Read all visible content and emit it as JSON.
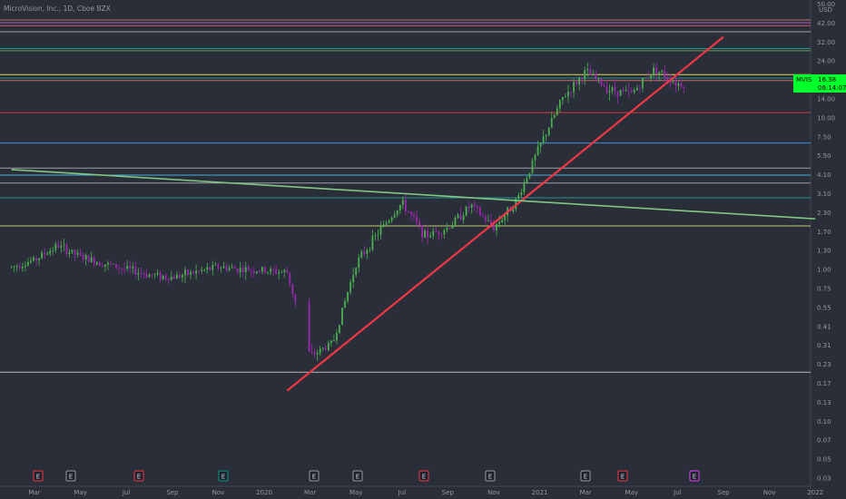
{
  "header": {
    "title": "MicroVision, Inc., 1D, Cboe BZX"
  },
  "price_axis": {
    "currency": "USD",
    "ticks": [
      "50.00",
      "42.00",
      "32.00",
      "24.00",
      "18.00",
      "14.00",
      "10.00",
      "7.50",
      "5.50",
      "4.10",
      "3.10",
      "2.30",
      "1.70",
      "1.30",
      "1.00",
      "0.75",
      "0.55",
      "0.41",
      "0.31",
      "0.23",
      "0.17",
      "0.13",
      "0.10",
      "0.07",
      "0.05",
      "0.03"
    ]
  },
  "time_axis": {
    "ticks": [
      "Mar",
      "May",
      "Jul",
      "Sep",
      "Nov",
      "2020",
      "Mar",
      "May",
      "Jul",
      "Sep",
      "Nov",
      "2021",
      "Mar",
      "May",
      "Jul",
      "Sep",
      "Nov",
      "2022"
    ]
  },
  "last_price": {
    "symbol": "MVIS",
    "value": "16.38",
    "countdown": "06:14:07",
    "color": "#00ff2a"
  },
  "earnings_markers": [
    {
      "label": "E",
      "color": "#f23645"
    },
    {
      "label": "E",
      "color": "#9598a1"
    },
    {
      "label": "E",
      "color": "#f23645"
    },
    {
      "label": "E",
      "color": "#089981"
    },
    {
      "label": "E",
      "color": "#9598a1"
    },
    {
      "label": "E",
      "color": "#9598a1"
    },
    {
      "label": "E",
      "color": "#f23645"
    },
    {
      "label": "E",
      "color": "#9598a1"
    },
    {
      "label": "E",
      "color": "#9598a1"
    },
    {
      "label": "E",
      "color": "#f23645"
    },
    {
      "label": "E",
      "color": "#e040fb"
    }
  ],
  "chart_data": {
    "type": "candlestick",
    "title": "MicroVision, Inc., 1D, Cboe BZX",
    "y_scale": "log",
    "ylim": [
      0.03,
      50
    ],
    "x_range": [
      "2019-02",
      "2022-01"
    ],
    "grid": false,
    "series": [
      {
        "date": "2019-02",
        "close": 0.85
      },
      {
        "date": "2019-03",
        "close": 0.95
      },
      {
        "date": "2019-04",
        "close": 1.2
      },
      {
        "date": "2019-05",
        "close": 1.0
      },
      {
        "date": "2019-06",
        "close": 0.9
      },
      {
        "date": "2019-07",
        "close": 0.82
      },
      {
        "date": "2019-08",
        "close": 0.75
      },
      {
        "date": "2019-09",
        "close": 0.72
      },
      {
        "date": "2019-10",
        "close": 0.78
      },
      {
        "date": "2019-11",
        "close": 0.85
      },
      {
        "date": "2019-12",
        "close": 0.82
      },
      {
        "date": "2020-01",
        "close": 0.8
      },
      {
        "date": "2020-02",
        "close": 0.78
      },
      {
        "date": "2020-03",
        "close": 0.2
      },
      {
        "date": "2020-04",
        "close": 0.25
      },
      {
        "date": "2020-05",
        "close": 0.9
      },
      {
        "date": "2020-06",
        "close": 1.5
      },
      {
        "date": "2020-07",
        "close": 2.4
      },
      {
        "date": "2020-08",
        "close": 1.4
      },
      {
        "date": "2020-09",
        "close": 1.6
      },
      {
        "date": "2020-10",
        "close": 2.3
      },
      {
        "date": "2020-11",
        "close": 1.6
      },
      {
        "date": "2020-12",
        "close": 2.5
      },
      {
        "date": "2021-01",
        "close": 6.0
      },
      {
        "date": "2021-02",
        "close": 13.0
      },
      {
        "date": "2021-03",
        "close": 20.0
      },
      {
        "date": "2021-04",
        "close": 15.0
      },
      {
        "date": "2021-05",
        "close": 14.0
      },
      {
        "date": "2021-06",
        "close": 21.0
      },
      {
        "date": "2021-07",
        "close": 16.38
      }
    ],
    "trendlines": [
      {
        "color": "#f23645",
        "from": {
          "date": "2020-02",
          "price": 0.115
        },
        "to": {
          "date": "2021-09",
          "price": 35.0
        }
      },
      {
        "color": "#81c784",
        "from": {
          "date": "2019-02",
          "price": 4.1
        },
        "to": {
          "date": "2022-01",
          "price": 1.85
        }
      }
    ],
    "horizontal_levels": [
      {
        "price": 46.0,
        "color": "#e57373"
      },
      {
        "price": 44.0,
        "color": "#ba68c8"
      },
      {
        "price": 42.0,
        "color": "#f06292"
      },
      {
        "price": 38.0,
        "color": "#b2b5be"
      },
      {
        "price": 29.0,
        "color": "#26a69a"
      },
      {
        "price": 28.0,
        "color": "#66bb6a"
      },
      {
        "price": 19.0,
        "color": "#ffee58"
      },
      {
        "price": 18.0,
        "color": "#26a69a"
      },
      {
        "price": 17.3,
        "color": "#e57373"
      },
      {
        "price": 10.3,
        "color": "#f23645"
      },
      {
        "price": 6.3,
        "color": "#42a5f5"
      },
      {
        "price": 4.2,
        "color": "#b2b5be"
      },
      {
        "price": 3.75,
        "color": "#4fc3f7"
      },
      {
        "price": 3.3,
        "color": "#b2b5be"
      },
      {
        "price": 2.6,
        "color": "#26a69a"
      },
      {
        "price": 1.65,
        "color": "#dce775"
      },
      {
        "price": 0.155,
        "color": "#d1d4dc"
      }
    ]
  }
}
